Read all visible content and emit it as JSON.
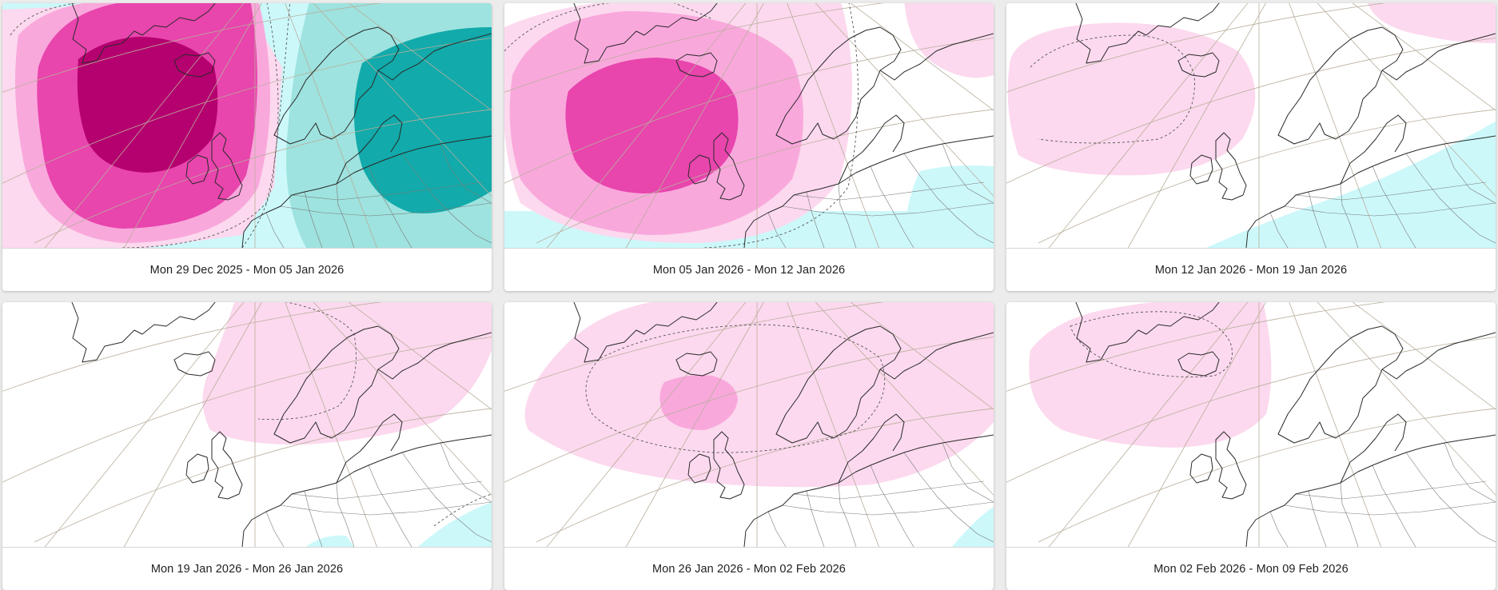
{
  "panels": [
    {
      "caption": "Mon 29 Dec 2025 - Mon 05 Jan 2026",
      "anomaly_scheme": "strong-positive-west-negative-east"
    },
    {
      "caption": "Mon 05 Jan 2026 - Mon 12 Jan 2026",
      "anomaly_scheme": "positive-north-atlantic"
    },
    {
      "caption": "Mon 12 Jan 2026 - Mon 19 Jan 2026",
      "anomaly_scheme": "weak-positive-atlantic"
    },
    {
      "caption": "Mon 19 Jan 2026 - Mon 26 Jan 2026",
      "anomaly_scheme": "weak-positive-scandinavia"
    },
    {
      "caption": "Mon 26 Jan 2026 - Mon 02 Feb 2026",
      "anomaly_scheme": "weak-positive-broad"
    },
    {
      "caption": "Mon 02 Feb 2026 - Mon 09 Feb 2026",
      "anomaly_scheme": "weak-positive-greenland"
    }
  ],
  "legend_colors": {
    "positive_1": "#fcd9ee",
    "positive_2": "#f9a8dc",
    "positive_3": "#e845ad",
    "positive_4": "#b5006f",
    "negative_1": "#ccf8fa",
    "negative_2": "#9ee3df",
    "negative_3": "#12aaaa",
    "coastline": "#2a2a2a",
    "border": "#7a7a7a",
    "graticule": "#b9ae9c",
    "contour_dashed": "#555555"
  }
}
